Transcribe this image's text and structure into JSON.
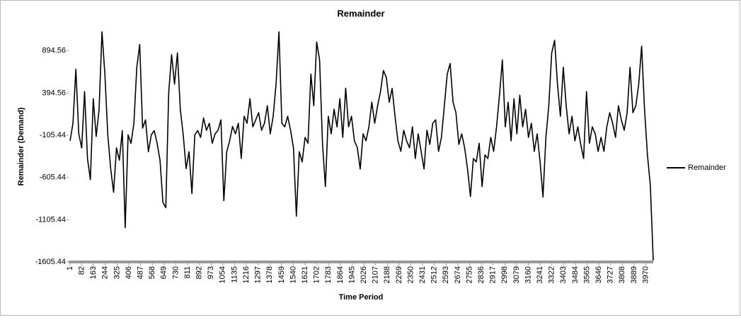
{
  "chart_data": {
    "type": "line",
    "title": "Remainder",
    "x_label": "Time Period",
    "y_label": "Remainder (Demand)",
    "x": [
      1,
      21,
      41,
      61,
      81,
      101,
      121,
      141,
      161,
      181,
      201,
      221,
      241,
      261,
      281,
      301,
      321,
      341,
      361,
      381,
      401,
      421,
      441,
      461,
      481,
      501,
      521,
      541,
      561,
      581,
      601,
      621,
      641,
      661,
      681,
      701,
      721,
      741,
      761,
      781,
      801,
      821,
      841,
      861,
      881,
      901,
      921,
      941,
      961,
      981,
      1001,
      1021,
      1041,
      1061,
      1081,
      1101,
      1121,
      1141,
      1161,
      1181,
      1201,
      1221,
      1241,
      1261,
      1281,
      1301,
      1321,
      1341,
      1361,
      1381,
      1401,
      1421,
      1441,
      1461,
      1481,
      1501,
      1521,
      1541,
      1561,
      1581,
      1601,
      1621,
      1641,
      1661,
      1681,
      1701,
      1721,
      1741,
      1761,
      1781,
      1801,
      1821,
      1841,
      1861,
      1881,
      1901,
      1921,
      1941,
      1961,
      1981,
      2001,
      2021,
      2041,
      2061,
      2081,
      2101,
      2121,
      2141,
      2161,
      2181,
      2201,
      2221,
      2241,
      2261,
      2281,
      2301,
      2321,
      2341,
      2361,
      2381,
      2401,
      2421,
      2441,
      2461,
      2481,
      2501,
      2521,
      2541,
      2561,
      2581,
      2601,
      2621,
      2641,
      2661,
      2681,
      2701,
      2721,
      2741,
      2761,
      2781,
      2801,
      2821,
      2841,
      2861,
      2881,
      2901,
      2921,
      2941,
      2961,
      2981,
      3001,
      3021,
      3041,
      3061,
      3081,
      3101,
      3121,
      3141,
      3161,
      3181,
      3201,
      3221,
      3241,
      3261,
      3281,
      3301,
      3321,
      3341,
      3361,
      3381,
      3401,
      3421,
      3441,
      3461,
      3481,
      3501,
      3521,
      3541,
      3561,
      3581,
      3601,
      3621,
      3641,
      3661,
      3681,
      3701,
      3721,
      3741,
      3761,
      3781,
      3801,
      3821,
      3841,
      3861,
      3881,
      3901,
      3921,
      3941,
      3961,
      3981,
      4001,
      4021
    ],
    "series": [
      {
        "name": "Remainder",
        "color": "#000000",
        "values": [
          -171,
          37,
          678,
          -88,
          -255,
          412,
          -380,
          -630,
          328,
          -120,
          200,
          1120,
          620,
          -100,
          -500,
          -780,
          -255,
          -400,
          -50,
          -1200,
          -100,
          -200,
          37,
          700,
          970,
          -20,
          78,
          -300,
          -100,
          -50,
          -200,
          -400,
          -900,
          -963,
          400,
          850,
          500,
          870,
          200,
          -100,
          -500,
          -300,
          -796,
          -100,
          -50,
          -130,
          100,
          -46,
          37,
          -200,
          -88,
          -46,
          78,
          -880,
          -300,
          -171,
          0,
          -88,
          37,
          -380,
          120,
          37,
          328,
          -5,
          78,
          162,
          -46,
          37,
          245,
          -88,
          120,
          500,
          1120,
          37,
          -5,
          120,
          -46,
          -255,
          -1063,
          -300,
          -421,
          -130,
          -200,
          620,
          245,
          1000,
          787,
          -200,
          -713,
          120,
          -88,
          203,
          -5,
          328,
          -130,
          453,
          -5,
          120,
          -171,
          -250,
          -505,
          -88,
          -171,
          -5,
          287,
          37,
          245,
          412,
          662,
          578,
          287,
          450,
          120,
          -171,
          -296,
          -46,
          -171,
          -255,
          -5,
          -380,
          -88,
          -296,
          -505,
          -46,
          -213,
          37,
          78,
          -296,
          -130,
          245,
          620,
          745,
          287,
          162,
          -213,
          -88,
          -255,
          -505,
          -830,
          -380,
          -421,
          -200,
          -713,
          -338,
          -380,
          -130,
          -296,
          -5,
          370,
          787,
          -5,
          287,
          -171,
          328,
          -88,
          370,
          -5,
          203,
          -130,
          37,
          -296,
          -88,
          -420,
          -838,
          -130,
          245,
          870,
          1020,
          500,
          120,
          700,
          245,
          -88,
          120,
          -171,
          -5,
          -213,
          -380,
          412,
          -200,
          -5,
          -88,
          -296,
          -130,
          -296,
          -5,
          162,
          37,
          -130,
          245,
          78,
          -46,
          162,
          700,
          162,
          245,
          500,
          950,
          200,
          -338,
          -700,
          -1588
        ]
      }
    ],
    "xlim": [
      1,
      4021
    ],
    "xticks": [
      1,
      82,
      163,
      244,
      325,
      406,
      487,
      568,
      649,
      730,
      811,
      892,
      973,
      1054,
      1135,
      1216,
      1297,
      1378,
      1459,
      1540,
      1621,
      1702,
      1783,
      1864,
      1945,
      2026,
      2107,
      2188,
      2269,
      2350,
      2431,
      2512,
      2593,
      2674,
      2755,
      2836,
      2917,
      2998,
      3079,
      3160,
      3241,
      3322,
      3403,
      3484,
      3565,
      3646,
      3727,
      3808,
      3889,
      3970
    ],
    "ylim": [
      -1605.44,
      1128
    ],
    "yticks": [
      -1605.44,
      -1105.44,
      -605.44,
      -105.44,
      394.56,
      894.56
    ],
    "legend": "right",
    "grid": false
  }
}
